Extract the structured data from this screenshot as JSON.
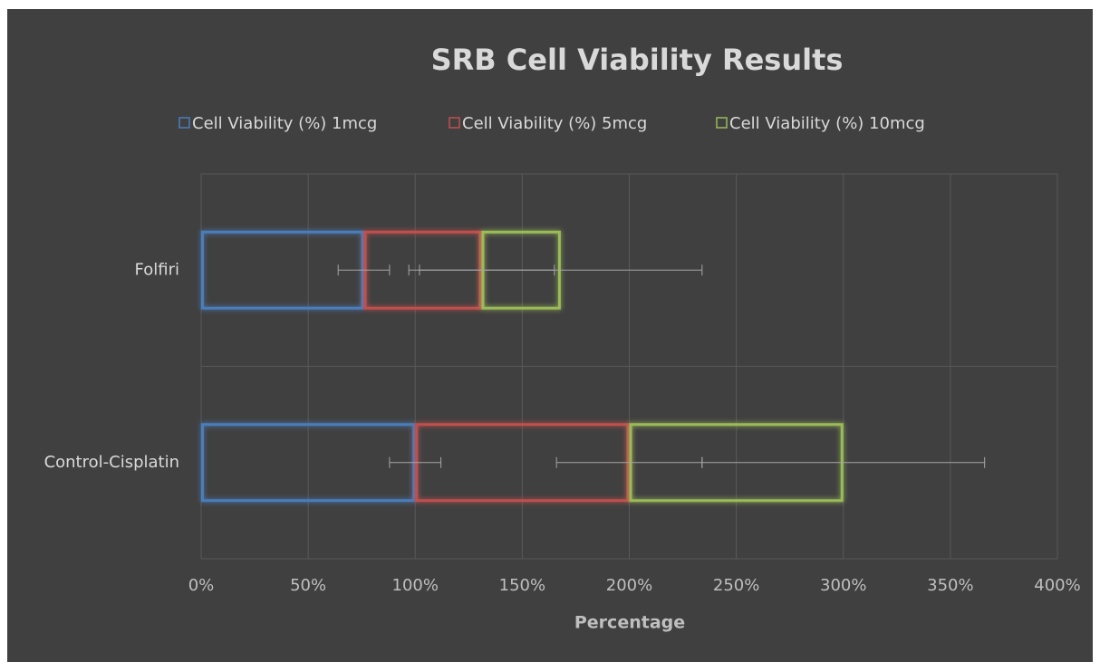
{
  "chart_data": {
    "type": "bar",
    "orientation": "horizontal",
    "stacked": true,
    "title": "SRB Cell Viability Results",
    "x_label": "Percentage",
    "categories": [
      "Folfiri",
      "Control-Cisplatin"
    ],
    "series": [
      {
        "name": "Cell Viability (%) 1mcg",
        "color": "#4a7ebb",
        "values": [
          76,
          100
        ],
        "errors": [
          12,
          12
        ]
      },
      {
        "name": "Cell Viability (%) 5mcg",
        "color": "#c0504d",
        "values": [
          55,
          100
        ],
        "errors": [
          34,
          34
        ]
      },
      {
        "name": "Cell Viability (%) 10mcg",
        "color": "#9bbb59",
        "values": [
          37,
          100
        ],
        "errors": [
          66,
          66
        ]
      }
    ],
    "xlim": [
      0,
      400
    ],
    "xticks": [
      {
        "value": 0,
        "label": "0%"
      },
      {
        "value": 50,
        "label": "50%"
      },
      {
        "value": 100,
        "label": "100%"
      },
      {
        "value": 150,
        "label": "150%"
      },
      {
        "value": 200,
        "label": "200%"
      },
      {
        "value": 250,
        "label": "250%"
      },
      {
        "value": 300,
        "label": "300%"
      },
      {
        "value": 350,
        "label": "350%"
      },
      {
        "value": 400,
        "label": "400%"
      }
    ],
    "grid": true,
    "legend": "top"
  }
}
